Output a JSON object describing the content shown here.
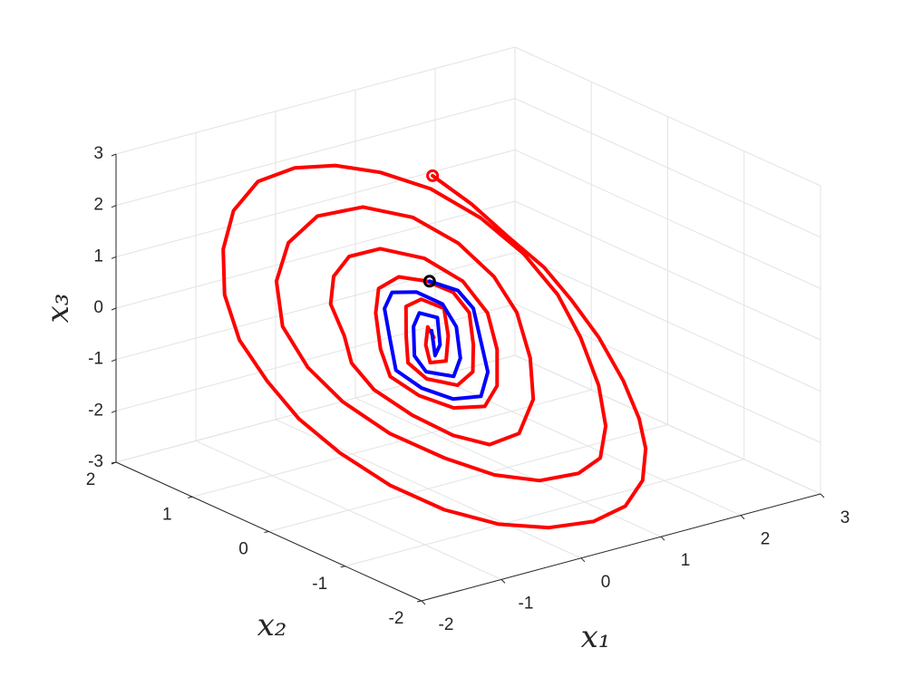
{
  "chart_data": {
    "type": "line3d",
    "xlabel": "x₁",
    "ylabel": "x₂",
    "zlabel": "x₃",
    "xlim": [
      -2,
      3
    ],
    "ylim": [
      -2,
      2
    ],
    "zlim": [
      -3,
      3
    ],
    "xticks": [
      -2,
      -1,
      0,
      1,
      2,
      3
    ],
    "yticks": [
      -2,
      -1,
      0,
      1,
      2
    ],
    "zticks": [
      -3,
      -2,
      -1,
      0,
      1,
      2,
      3
    ],
    "grid": true,
    "series": [
      {
        "color": "#ff0000",
        "start_marker_color": "#ff0000",
        "x": [
          1.01,
          1.26,
          1.46,
          1.67,
          1.77,
          1.84,
          1.85,
          1.79,
          1.68,
          1.45,
          1.11,
          0.67,
          0.14,
          -0.38,
          -0.89,
          -1.33,
          -1.68,
          -1.92,
          -2.04,
          -2.09,
          -1.98,
          -1.72,
          -1.37,
          -0.93,
          -0.45,
          0.01,
          0.46,
          0.91,
          1.28,
          1.53,
          1.65,
          1.64,
          1.55,
          1.38,
          1.13,
          0.8,
          0.33,
          -0.13,
          -0.57,
          -1.02,
          -1.34,
          -1.51,
          -1.54,
          -1.33,
          -0.97,
          -0.49,
          0.06,
          0.54,
          0.88,
          1.07,
          1.1,
          0.97,
          0.75,
          0.39,
          0.0,
          -0.34,
          -0.66,
          -0.93,
          -1.01,
          -0.92,
          -0.88,
          -0.68,
          -0.39,
          0.0,
          0.42,
          0.7,
          0.78,
          0.66,
          0.44,
          0.18,
          -0.17,
          -0.47,
          -0.67,
          -0.61,
          -0.44,
          -0.26,
          0.03,
          0.3,
          0.53,
          0.58,
          0.43,
          0.26,
          0.01,
          -0.29,
          -0.39,
          -0.25,
          -0.07,
          0.14,
          0.33,
          0.21,
          0.03,
          -0.15,
          -0.09,
          0.04,
          0.04
        ],
        "y": [
          1.0,
          0.75,
          0.49,
          0.23,
          -0.02,
          -0.31,
          -0.62,
          -0.89,
          -1.09,
          -1.29,
          -1.42,
          -1.46,
          -1.43,
          -1.32,
          -1.14,
          -0.89,
          -0.6,
          -0.31,
          -0.02,
          0.29,
          0.6,
          0.89,
          1.12,
          1.26,
          1.28,
          1.23,
          1.11,
          0.92,
          0.65,
          0.35,
          0.03,
          -0.28,
          -0.61,
          -0.88,
          -1.07,
          -1.13,
          -1.11,
          -1.0,
          -0.81,
          -0.56,
          -0.28,
          0,
          0.3,
          0.6,
          0.82,
          0.94,
          0.92,
          0.77,
          0.53,
          0.26,
          -0.01,
          -0.32,
          -0.59,
          -0.78,
          -0.8,
          -0.68,
          -0.48,
          -0.26,
          -0.05,
          0.14,
          0.36,
          0.53,
          0.63,
          0.63,
          0.49,
          0.28,
          0.04,
          -0.21,
          -0.44,
          -0.55,
          -0.51,
          -0.37,
          -0.2,
          -0.01,
          0.23,
          0.38,
          0.42,
          0.34,
          0.23,
          0.07,
          -0.14,
          -0.31,
          -0.37,
          -0.28,
          -0.14,
          0.03,
          0.22,
          0.24,
          0.14,
          -0.04,
          -0.2,
          -0.18,
          -0.06,
          0.05,
          -0.03
        ],
        "z": [
          2.0,
          1.51,
          0.98,
          0.46,
          -0.04,
          -0.61,
          -1.25,
          -1.78,
          -2.18,
          -2.57,
          -2.84,
          -2.93,
          -2.85,
          -2.64,
          -2.27,
          -1.78,
          -1.2,
          -0.63,
          -0.04,
          0.57,
          1.2,
          1.78,
          2.23,
          2.52,
          2.57,
          2.46,
          2.22,
          1.84,
          1.3,
          0.7,
          0.07,
          -0.55,
          -1.22,
          -1.76,
          -2.15,
          -2.27,
          -2.23,
          -2.0,
          -1.62,
          -1.12,
          -0.56,
          -0.01,
          0.6,
          1.19,
          1.64,
          1.88,
          1.84,
          1.54,
          1.06,
          0.51,
          -0.02,
          -0.64,
          -1.17,
          -1.56,
          -1.6,
          -1.36,
          -0.97,
          -0.51,
          -0.1,
          0.27,
          0.72,
          1.06,
          1.26,
          1.25,
          0.98,
          0.56,
          0.07,
          -0.42,
          -0.88,
          -1.1,
          -1.01,
          -0.74,
          -0.4,
          -0.02,
          0.45,
          0.75,
          0.83,
          0.69,
          0.45,
          0.14,
          -0.28,
          -0.62,
          -0.74,
          -0.55,
          -0.29,
          0.06,
          0.43,
          0.47,
          0.28,
          -0.08,
          -0.39,
          -0.36,
          -0.12,
          0.1,
          -0.05
        ]
      },
      {
        "color": "#0000ff",
        "start_marker_color": "#000000",
        "x": [
          0.34,
          0.59,
          0.65,
          0.54,
          0.42,
          0.2,
          -0.12,
          -0.4,
          -0.57,
          -0.45,
          -0.32,
          -0.14,
          0.13,
          0.34,
          0.35,
          0.21,
          0.02,
          -0.25,
          -0.28,
          -0.11,
          0.03,
          0.2,
          0.07,
          -0.05,
          0.06
        ],
        "y": [
          0.34,
          0.23,
          0.09,
          -0.12,
          -0.34,
          -0.48,
          -0.45,
          -0.33,
          -0.17,
          0.03,
          0.24,
          0.33,
          0.29,
          0.17,
          0,
          -0.2,
          -0.31,
          -0.23,
          -0.11,
          0.08,
          0.15,
          0.09,
          -0.08,
          -0.14,
          0.02
        ],
        "z": [
          0.67,
          0.46,
          0.18,
          -0.25,
          -0.67,
          -0.96,
          -0.9,
          -0.65,
          -0.34,
          0.06,
          0.48,
          0.66,
          0.58,
          0.34,
          0.01,
          -0.41,
          -0.61,
          -0.46,
          -0.22,
          0.15,
          0.31,
          0.19,
          -0.17,
          -0.29,
          0.04
        ]
      }
    ]
  }
}
